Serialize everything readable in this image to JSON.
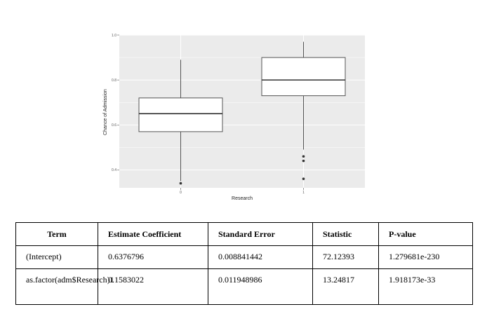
{
  "chart_data": {
    "type": "boxplot",
    "xlabel": "Research",
    "ylabel": "Chance of Admission",
    "categories": [
      "0",
      "1"
    ],
    "ylim": [
      0.32,
      1.0
    ],
    "yticks": [
      "0.4",
      "0.6",
      "0.8",
      "1.0"
    ],
    "grid": true,
    "boxes": [
      {
        "category": "0",
        "whisker_low": 0.35,
        "q1": 0.57,
        "median": 0.65,
        "q3": 0.72,
        "whisker_high": 0.89,
        "outliers": [
          0.34
        ]
      },
      {
        "category": "1",
        "whisker_low": 0.49,
        "q1": 0.73,
        "median": 0.8,
        "q3": 0.9,
        "whisker_high": 0.97,
        "outliers": [
          0.46,
          0.44,
          0.36
        ]
      }
    ],
    "colors": {
      "panel": "#ebebeb",
      "gridline": "#ffffff",
      "box_fill": "#ffffff",
      "box_stroke": "#555555",
      "median": "#333333",
      "outlier": "#333333"
    }
  },
  "table": {
    "headers": [
      "Term",
      "Estimate Coefficient",
      "Standard Error",
      "Statistic",
      "P-value"
    ],
    "rows": [
      [
        "(Intercept)",
        "0.6376796",
        "0.008841442",
        "72.12393",
        "1.279681e-230"
      ],
      [
        "as.factor(adm$Research)1",
        "0.1583022",
        "0.011948986",
        "13.24817",
        "1.918173e-33"
      ]
    ]
  }
}
